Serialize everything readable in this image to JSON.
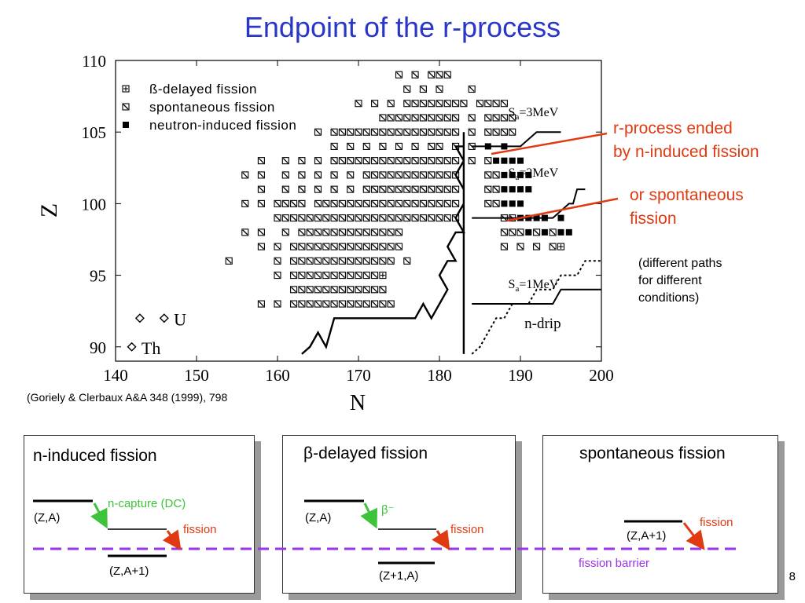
{
  "title": "Endpoint of the r-process",
  "chart_data": {
    "type": "scatter",
    "xlabel": "N",
    "ylabel": "Z",
    "xlim": [
      140,
      200
    ],
    "ylim": [
      89,
      110
    ],
    "xticks": [
      "140",
      "150",
      "160",
      "170",
      "180",
      "190",
      "200"
    ],
    "yticks": [
      "90",
      "95",
      "100",
      "105",
      "110"
    ],
    "legend": {
      "placement": "top-left",
      "entries": [
        {
          "label": "ß-delayed  fission",
          "marker": "boxed-plus"
        },
        {
          "label": "spontaneous  fission",
          "marker": "boxed-slash"
        },
        {
          "label": "neutron-induced  fission",
          "marker": "filled-square"
        }
      ]
    },
    "series": [
      {
        "name": "spontaneous  fission",
        "marker": "boxed-slash",
        "rows": [
          {
            "z": 109,
            "n": [
              175,
              177,
              179,
              180,
              181
            ]
          },
          {
            "z": 108,
            "n": [
              176,
              178,
              180,
              184
            ]
          },
          {
            "z": 107,
            "n": [
              170,
              172,
              174,
              176,
              177,
              178,
              179,
              180,
              181,
              182,
              183,
              185,
              186,
              187,
              188
            ]
          },
          {
            "z": 106,
            "n": [
              173,
              174,
              175,
              176,
              177,
              178,
              179,
              180,
              181,
              182,
              184,
              186,
              187,
              188,
              189
            ]
          },
          {
            "z": 105,
            "n": [
              165,
              167,
              168,
              169,
              170,
              171,
              172,
              173,
              174,
              175,
              176,
              177,
              178,
              179,
              180,
              181,
              182,
              184,
              186,
              187,
              188,
              189
            ]
          },
          {
            "z": 104,
            "n": [
              167,
              169,
              171,
              173,
              175,
              177,
              179,
              180,
              182,
              184
            ]
          },
          {
            "z": 103,
            "n": [
              158,
              161,
              163,
              165,
              167,
              168,
              169,
              170,
              171,
              172,
              173,
              174,
              175,
              176,
              177,
              178,
              179,
              180,
              181,
              182,
              184,
              186
            ]
          },
          {
            "z": 102,
            "n": [
              156,
              158,
              161,
              163,
              165,
              167,
              169,
              171,
              172,
              173,
              174,
              175,
              176,
              177,
              178,
              179,
              180,
              181,
              182,
              186,
              187
            ]
          },
          {
            "z": 101,
            "n": [
              158,
              161,
              163,
              165,
              167,
              169,
              171,
              172,
              173,
              174,
              175,
              176,
              177,
              178,
              179,
              180,
              181,
              182,
              186,
              187
            ]
          },
          {
            "z": 100,
            "n": [
              156,
              158,
              160,
              161,
              162,
              163,
              165,
              166,
              167,
              168,
              169,
              170,
              171,
              172,
              173,
              174,
              175,
              176,
              177,
              178,
              179,
              180,
              181,
              182,
              186,
              187
            ]
          },
          {
            "z": 99,
            "n": [
              160,
              161,
              162,
              163,
              164,
              165,
              166,
              167,
              168,
              169,
              170,
              171,
              172,
              173,
              174,
              175,
              176,
              177,
              178,
              179,
              180,
              181,
              182,
              188,
              189
            ]
          },
          {
            "z": 98,
            "n": [
              156,
              158,
              161,
              163,
              164,
              165,
              166,
              167,
              168,
              169,
              170,
              171,
              172,
              173,
              174,
              175,
              188,
              189,
              190,
              192,
              194
            ]
          },
          {
            "z": 97,
            "n": [
              158,
              160,
              162,
              163,
              164,
              165,
              166,
              167,
              168,
              169,
              170,
              171,
              172,
              173,
              174,
              175,
              188,
              190,
              192,
              194
            ]
          },
          {
            "z": 96,
            "n": [
              154,
              160,
              162,
              163,
              164,
              165,
              166,
              167,
              168,
              169,
              170,
              171,
              172,
              173,
              174,
              176
            ]
          },
          {
            "z": 95,
            "n": [
              160,
              162,
              163,
              164,
              165,
              166,
              167,
              168,
              169,
              170,
              171,
              172
            ]
          },
          {
            "z": 94,
            "n": [
              162,
              163,
              164,
              165,
              166,
              167,
              168,
              169,
              170,
              171,
              172,
              173
            ]
          },
          {
            "z": 93,
            "n": [
              158,
              160,
              162,
              163,
              164,
              165,
              166,
              167,
              168,
              169,
              170,
              171,
              172,
              173,
              174
            ]
          }
        ]
      },
      {
        "name": "neutron-induced  fission",
        "marker": "filled-square",
        "rows": [
          {
            "z": 104,
            "n": [
              186,
              188
            ]
          },
          {
            "z": 103,
            "n": [
              187,
              188,
              189,
              190
            ]
          },
          {
            "z": 102,
            "n": [
              188,
              189,
              190,
              191
            ]
          },
          {
            "z": 101,
            "n": [
              188,
              189,
              190,
              191
            ]
          },
          {
            "z": 100,
            "n": [
              188,
              189,
              190
            ]
          },
          {
            "z": 99,
            "n": [
              190,
              191,
              192,
              193,
              195
            ]
          },
          {
            "z": 98,
            "n": [
              191,
              193,
              195,
              196
            ]
          }
        ]
      },
      {
        "name": "ß-delayed  fission",
        "marker": "boxed-plus",
        "points": [
          {
            "n": 173,
            "z": 95
          },
          {
            "n": 195,
            "z": 97
          }
        ]
      }
    ],
    "isotopes": [
      {
        "label": "U",
        "points": [
          {
            "n": 143,
            "z": 92
          },
          {
            "n": 146,
            "z": 92
          }
        ]
      },
      {
        "label": "Th",
        "points": [
          {
            "n": 142,
            "z": 90
          }
        ]
      }
    ],
    "paths": [
      {
        "label": "Sa=3MeV",
        "sub": "a",
        "pre": "S",
        "post": "=3MeV",
        "points": [
          [
            184,
            104
          ],
          [
            190,
            104
          ],
          [
            192,
            105
          ],
          [
            195,
            105
          ]
        ]
      },
      {
        "label": "Sa=2MeV",
        "sub": "a",
        "pre": "S",
        "post": "=2MeV",
        "points": [
          [
            184,
            99
          ],
          [
            194,
            99
          ],
          [
            196,
            100
          ],
          [
            196.5,
            100
          ],
          [
            197,
            101
          ],
          [
            198,
            101
          ]
        ]
      },
      {
        "label": "Sa=1MeV",
        "sub": "a",
        "pre": "S",
        "post": "=1MeV",
        "points": [
          [
            184,
            93
          ],
          [
            194,
            93
          ],
          [
            195,
            94
          ],
          [
            200,
            94
          ]
        ]
      },
      {
        "label": "boundary",
        "style": "zigzag",
        "points": [
          [
            163,
            89.5
          ],
          [
            164,
            90
          ],
          [
            165,
            91
          ],
          [
            166,
            90
          ],
          [
            167,
            92
          ],
          [
            177,
            92
          ],
          [
            178,
            93
          ],
          [
            179,
            92
          ],
          [
            181,
            94
          ],
          [
            180,
            95
          ],
          [
            181,
            96
          ],
          [
            182,
            96
          ],
          [
            181,
            97
          ],
          [
            182,
            98
          ],
          [
            183,
            98
          ],
          [
            182,
            99
          ],
          [
            183,
            100
          ],
          [
            183,
            101
          ],
          [
            182,
            102
          ],
          [
            183,
            103
          ],
          [
            182,
            104
          ],
          [
            183,
            104
          ],
          [
            183,
            105
          ],
          [
            183,
            89.5
          ]
        ]
      },
      {
        "label": "n-drip",
        "style": "dotted",
        "points": [
          [
            184,
            89.5
          ],
          [
            185,
            90
          ],
          [
            186,
            91
          ],
          [
            187,
            92
          ],
          [
            188,
            92
          ],
          [
            189,
            93
          ],
          [
            191,
            93
          ],
          [
            192,
            94
          ],
          [
            194,
            94
          ],
          [
            195,
            95
          ],
          [
            197,
            95
          ],
          [
            198,
            96
          ],
          [
            200,
            96
          ]
        ]
      }
    ]
  },
  "annotations": {
    "r_process_1": "r-process ended",
    "r_process_2": "by n-induced fission",
    "spontaneous_1": "or spontaneous",
    "spontaneous_2": "fission",
    "paths_1": "(different paths",
    "paths_2": "for different",
    "paths_3": "conditions)",
    "citation": "(Goriely & Clerbaux A&A 348 (1999), 798",
    "n_drip": "n-drip",
    "u_label": "U",
    "th_label": "Th"
  },
  "panels": {
    "n_induced": {
      "title": "n-induced fission",
      "state_a": "(Z,A)",
      "transition": "n-capture (DC)",
      "fission": "fission",
      "state_b": "(Z,A+1)"
    },
    "beta_delayed": {
      "title_prefix": "β",
      "title_rest": "-delayed fission",
      "state_a": "(Z,A)",
      "transition": "β⁻",
      "fission": "fission",
      "state_b": "(Z+1,A)"
    },
    "spontaneous": {
      "title": "spontaneous fission",
      "fission": "fission",
      "state": "(Z,A+1)",
      "barrier": "fission barrier"
    }
  },
  "page_number": "8",
  "colors": {
    "title": "#2a36c8",
    "annotation_red": "#e03a12",
    "green_arrow": "#3ec43a",
    "red_arrow": "#e03a12",
    "barrier": "#9b33ea"
  }
}
